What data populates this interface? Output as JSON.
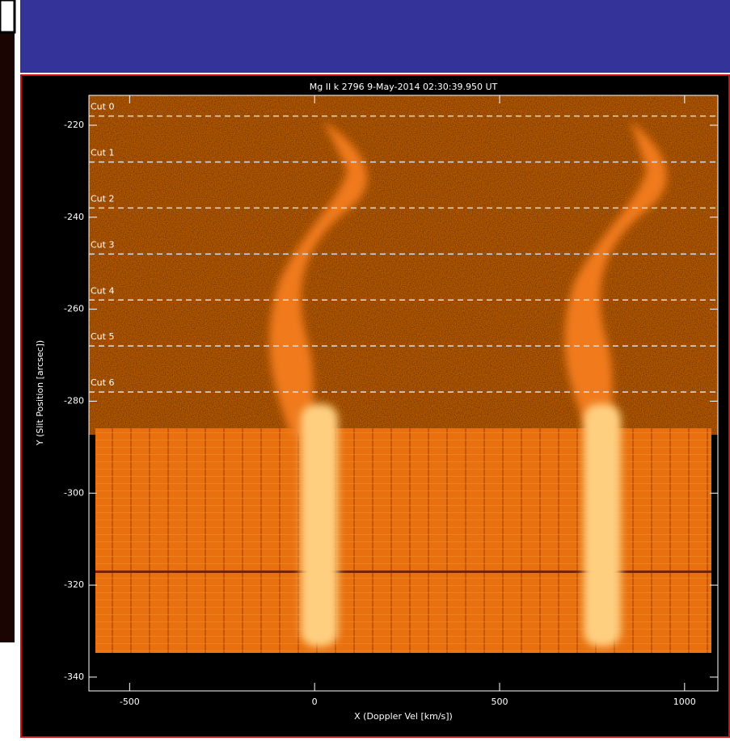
{
  "chart_data": {
    "type": "image",
    "title": "Mg II k 2796  9-May-2014 02:30:39.950 UT",
    "xlabel": "X (Doppler Vel [km/s])",
    "ylabel": "Y (Slit Position [arcsec])",
    "xlim": [
      -610,
      1090
    ],
    "ylim": [
      -343,
      -213.5
    ],
    "xticks": [
      -500,
      0,
      500,
      1000
    ],
    "yticks": [
      -220,
      -240,
      -260,
      -280,
      -300,
      -320,
      -340
    ],
    "cuts": [
      {
        "label": "Cut 0",
        "y": -218
      },
      {
        "label": "Cut 1",
        "y": -228
      },
      {
        "label": "Cut 2",
        "y": -238
      },
      {
        "label": "Cut 3",
        "y": -248
      },
      {
        "label": "Cut 4",
        "y": -258
      },
      {
        "label": "Cut 5",
        "y": -268
      },
      {
        "label": "Cut 6",
        "y": -278
      }
    ]
  }
}
